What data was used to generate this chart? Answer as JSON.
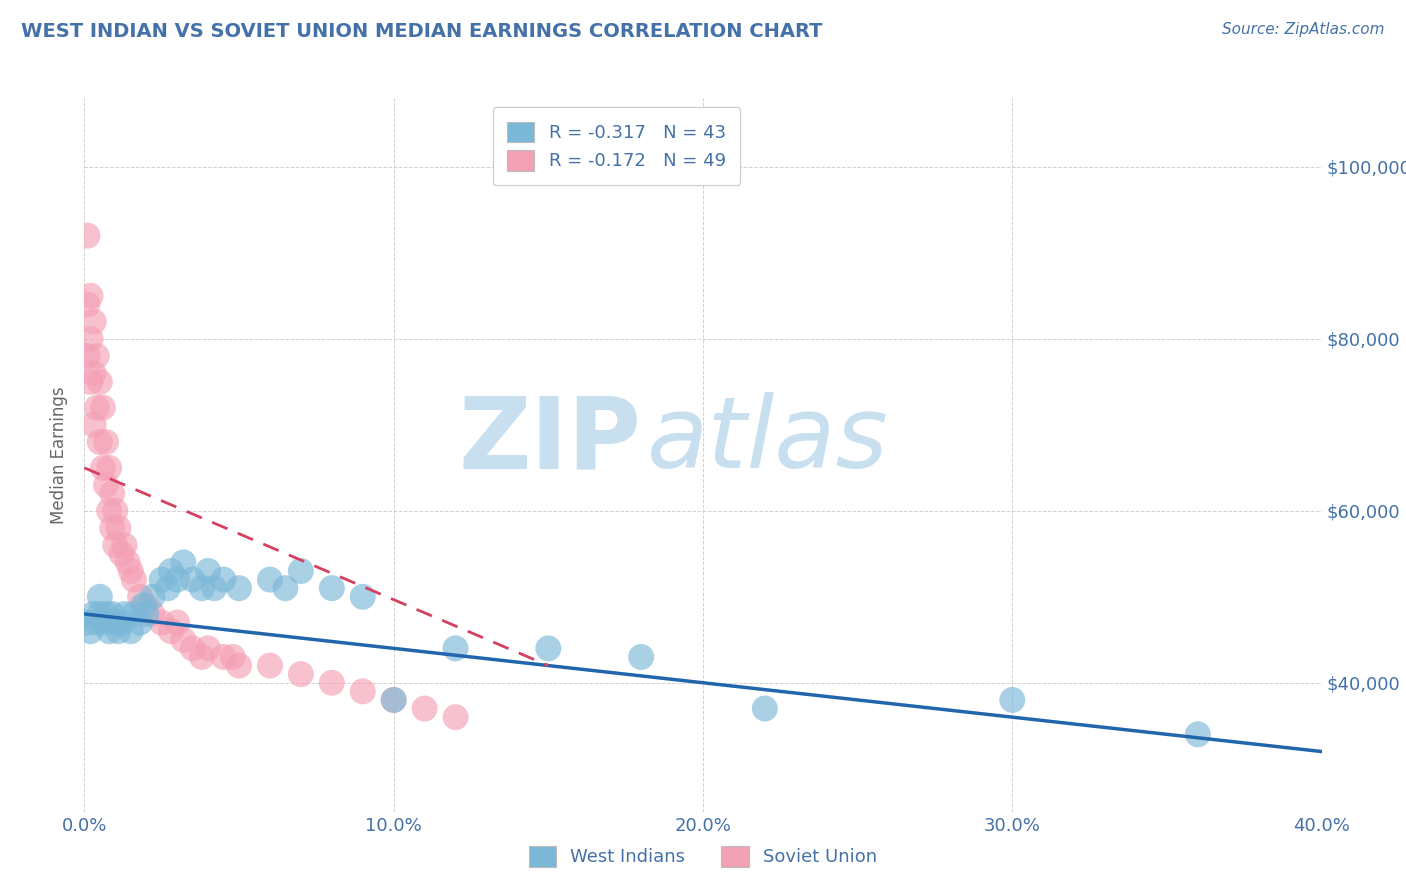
{
  "title": "WEST INDIAN VS SOVIET UNION MEDIAN EARNINGS CORRELATION CHART",
  "source": "Source: ZipAtlas.com",
  "ylabel": "Median Earnings",
  "xlim": [
    0.0,
    0.4
  ],
  "ylim": [
    25000,
    108000
  ],
  "xtick_labels": [
    "0.0%",
    "10.0%",
    "20.0%",
    "30.0%",
    "40.0%"
  ],
  "xtick_positions": [
    0.0,
    0.1,
    0.2,
    0.3,
    0.4
  ],
  "ytick_labels": [
    "$40,000",
    "$60,000",
    "$80,000",
    "$100,000"
  ],
  "ytick_positions": [
    40000,
    60000,
    80000,
    100000
  ],
  "legend1_label": "R = -0.317   N = 43",
  "legend2_label": "R = -0.172   N = 49",
  "legend_bottom_label1": "West Indians",
  "legend_bottom_label2": "Soviet Union",
  "blue_color": "#7bb8d8",
  "pink_color": "#f4a0b5",
  "blue_line_color": "#2166ac",
  "pink_line_color": "#d44060",
  "title_color": "#4472a8",
  "axis_label_color": "#666666",
  "tick_color": "#4472a8",
  "grid_color": "#cccccc",
  "watermark_zip_color": "#c8dff0",
  "watermark_atlas_color": "#c8dff0",
  "west_indians_x": [
    0.001,
    0.002,
    0.003,
    0.004,
    0.005,
    0.005,
    0.006,
    0.007,
    0.008,
    0.009,
    0.01,
    0.011,
    0.012,
    0.013,
    0.015,
    0.016,
    0.018,
    0.019,
    0.02,
    0.022,
    0.025,
    0.027,
    0.028,
    0.03,
    0.032,
    0.035,
    0.038,
    0.04,
    0.042,
    0.045,
    0.05,
    0.06,
    0.065,
    0.07,
    0.08,
    0.09,
    0.1,
    0.12,
    0.15,
    0.18,
    0.22,
    0.3,
    0.36
  ],
  "west_indians_y": [
    47000,
    46000,
    48000,
    47000,
    48000,
    50000,
    47000,
    48000,
    46000,
    48000,
    47000,
    46000,
    47000,
    48000,
    46000,
    48000,
    47000,
    49000,
    48000,
    50000,
    52000,
    51000,
    53000,
    52000,
    54000,
    52000,
    51000,
    53000,
    51000,
    52000,
    51000,
    52000,
    51000,
    53000,
    51000,
    50000,
    38000,
    44000,
    44000,
    43000,
    37000,
    38000,
    34000
  ],
  "soviet_union_x": [
    0.001,
    0.001,
    0.001,
    0.002,
    0.002,
    0.002,
    0.003,
    0.003,
    0.003,
    0.004,
    0.004,
    0.005,
    0.005,
    0.006,
    0.006,
    0.007,
    0.007,
    0.008,
    0.008,
    0.009,
    0.009,
    0.01,
    0.01,
    0.011,
    0.012,
    0.013,
    0.014,
    0.015,
    0.016,
    0.018,
    0.02,
    0.022,
    0.025,
    0.028,
    0.03,
    0.032,
    0.035,
    0.038,
    0.04,
    0.045,
    0.048,
    0.05,
    0.06,
    0.07,
    0.08,
    0.09,
    0.1,
    0.11,
    0.12
  ],
  "soviet_union_y": [
    92000,
    84000,
    78000,
    85000,
    80000,
    75000,
    82000,
    76000,
    70000,
    78000,
    72000,
    75000,
    68000,
    72000,
    65000,
    68000,
    63000,
    65000,
    60000,
    62000,
    58000,
    60000,
    56000,
    58000,
    55000,
    56000,
    54000,
    53000,
    52000,
    50000,
    49000,
    48000,
    47000,
    46000,
    47000,
    45000,
    44000,
    43000,
    44000,
    43000,
    43000,
    42000,
    42000,
    41000,
    40000,
    39000,
    38000,
    37000,
    36000
  ],
  "blue_line_x": [
    0.0,
    0.4
  ],
  "blue_line_y": [
    48000,
    32000
  ],
  "pink_line_x": [
    0.0,
    0.15
  ],
  "pink_line_y": [
    65000,
    42000
  ]
}
